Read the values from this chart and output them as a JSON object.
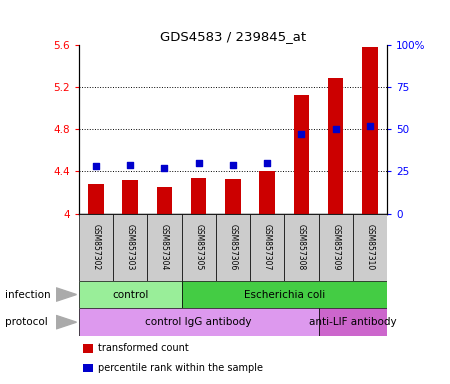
{
  "title": "GDS4583 / 239845_at",
  "samples": [
    "GSM857302",
    "GSM857303",
    "GSM857304",
    "GSM857305",
    "GSM857306",
    "GSM857307",
    "GSM857308",
    "GSM857309",
    "GSM857310"
  ],
  "transformed_count": [
    4.28,
    4.32,
    4.25,
    4.34,
    4.33,
    4.4,
    5.12,
    5.28,
    5.58
  ],
  "percentile_rank": [
    28,
    29,
    27,
    30,
    29,
    30,
    47,
    50,
    52
  ],
  "ylim_left": [
    4.0,
    5.6
  ],
  "ylim_right": [
    0,
    100
  ],
  "yticks_left": [
    4.0,
    4.4,
    4.8,
    5.2,
    5.6
  ],
  "yticks_right": [
    0,
    25,
    50,
    75,
    100
  ],
  "ytick_labels_left": [
    "4",
    "4.4",
    "4.8",
    "5.2",
    "5.6"
  ],
  "ytick_labels_right": [
    "0",
    "25",
    "50",
    "75",
    "100%"
  ],
  "bar_color": "#cc0000",
  "dot_color": "#0000cc",
  "infection_groups": [
    {
      "label": "control",
      "start": 0,
      "end": 3,
      "color": "#99ee99"
    },
    {
      "label": "Escherichia coli",
      "start": 3,
      "end": 9,
      "color": "#44cc44"
    }
  ],
  "protocol_groups": [
    {
      "label": "control IgG antibody",
      "start": 0,
      "end": 7,
      "color": "#dd99ee"
    },
    {
      "label": "anti-LIF antibody",
      "start": 7,
      "end": 9,
      "color": "#cc66cc"
    }
  ],
  "sample_box_color": "#cccccc",
  "bar_width": 0.45,
  "infection_label": "infection",
  "protocol_label": "protocol",
  "legend_items": [
    {
      "label": "transformed count",
      "color": "#cc0000"
    },
    {
      "label": "percentile rank within the sample",
      "color": "#0000cc"
    }
  ]
}
